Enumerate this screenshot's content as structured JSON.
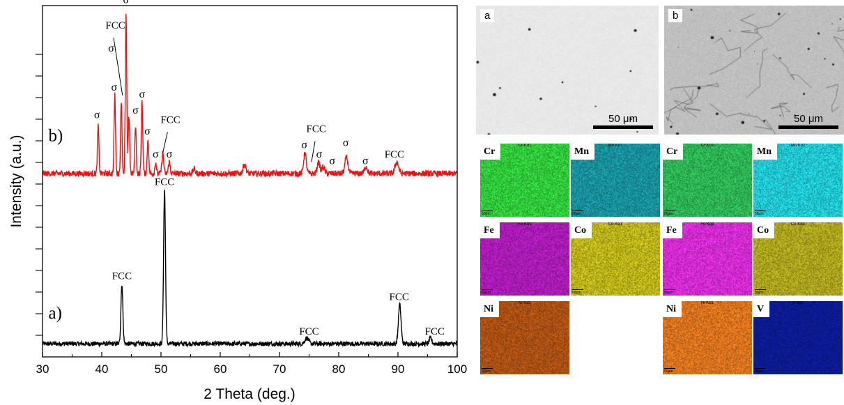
{
  "chart_data": {
    "type": "line",
    "title": "",
    "xlabel": "2 Theta (deg.)",
    "ylabel": "Intensity (a.u.)",
    "xlim": [
      30,
      100
    ],
    "xticks": [
      30,
      40,
      50,
      60,
      70,
      80,
      90,
      100
    ],
    "ylim": [
      0,
      100
    ],
    "legend": "none",
    "grid": false,
    "series": [
      {
        "label": "a)",
        "color": "#000000",
        "baseline": 3,
        "noise": 1.0,
        "peaks": [
          {
            "x": 43.4,
            "height": 26,
            "width": 0.16
          },
          {
            "x": 50.6,
            "height": 67,
            "width": 0.16
          },
          {
            "x": 74.6,
            "height": 2.5,
            "width": 0.3
          },
          {
            "x": 90.3,
            "height": 17,
            "width": 0.22
          },
          {
            "x": 95.5,
            "height": 2.5,
            "width": 0.2
          }
        ]
      },
      {
        "label": "b)",
        "color": "#ee1111",
        "baseline": 77,
        "noise": 1.3,
        "peaks": [
          {
            "x": 39.4,
            "height": 21,
            "width": 0.12
          },
          {
            "x": 42.2,
            "height": 34,
            "width": 0.12
          },
          {
            "x": 43.3,
            "height": 32,
            "width": 0.12
          },
          {
            "x": 44.1,
            "height": 69,
            "width": 0.12
          },
          {
            "x": 44.6,
            "height": 25,
            "width": 0.12
          },
          {
            "x": 45.7,
            "height": 21,
            "width": 0.12
          },
          {
            "x": 46.8,
            "height": 32,
            "width": 0.12
          },
          {
            "x": 47.8,
            "height": 15,
            "width": 0.12
          },
          {
            "x": 49.1,
            "height": 5,
            "width": 0.12
          },
          {
            "x": 50.3,
            "height": 9,
            "width": 0.15
          },
          {
            "x": 51.4,
            "height": 5,
            "width": 0.15
          },
          {
            "x": 55.6,
            "height": 2,
            "width": 0.2
          },
          {
            "x": 64.1,
            "height": 4,
            "width": 0.25
          },
          {
            "x": 74.3,
            "height": 9,
            "width": 0.22
          },
          {
            "x": 76.6,
            "height": 5,
            "width": 0.22
          },
          {
            "x": 77.4,
            "height": 3,
            "width": 0.22
          },
          {
            "x": 81.3,
            "height": 7,
            "width": 0.25
          },
          {
            "x": 84.6,
            "height": 3,
            "width": 0.25
          },
          {
            "x": 89.8,
            "height": 5,
            "width": 0.3
          }
        ]
      }
    ],
    "annotations": [
      {
        "text": "FCC",
        "x": 43.4,
        "y": 31,
        "kind": "peak"
      },
      {
        "text": "FCC",
        "x": 50.6,
        "y": 72,
        "kind": "peak"
      },
      {
        "text": "FCC",
        "x": 75.0,
        "y": 7,
        "kind": "peak"
      },
      {
        "text": "FCC",
        "x": 90.2,
        "y": 22,
        "kind": "peak"
      },
      {
        "text": "FCC",
        "x": 96.2,
        "y": 7,
        "kind": "peak"
      },
      {
        "text": "σ",
        "x": 39.2,
        "y": 101,
        "kind": "sigma"
      },
      {
        "text": "σ",
        "x": 42.1,
        "y": 113,
        "kind": "sigma"
      },
      {
        "text": "σ",
        "x": 44.1,
        "y": 151,
        "kind": "sigma"
      },
      {
        "text": "σ",
        "x": 45.7,
        "y": 103,
        "kind": "sigma"
      },
      {
        "text": "σ",
        "x": 46.8,
        "y": 110,
        "kind": "sigma"
      },
      {
        "text": "σ",
        "x": 47.7,
        "y": 94,
        "kind": "sigma"
      },
      {
        "text": "σ",
        "x": 49.1,
        "y": 84,
        "kind": "sigma"
      },
      {
        "text": "σ",
        "x": 51.4,
        "y": 84,
        "kind": "sigma"
      },
      {
        "text": "σ",
        "x": 74.2,
        "y": 88,
        "kind": "sigma"
      },
      {
        "text": "σ",
        "x": 76.7,
        "y": 84,
        "kind": "sigma"
      },
      {
        "text": "σ",
        "x": 78.9,
        "y": 81,
        "kind": "sigma"
      },
      {
        "text": "σ",
        "x": 81.2,
        "y": 89,
        "kind": "sigma"
      },
      {
        "text": "σ",
        "x": 84.5,
        "y": 81,
        "kind": "sigma"
      },
      {
        "text": "FCC",
        "x": 89.4,
        "y": 84,
        "kind": "plain"
      },
      {
        "text": "FCC",
        "x": 42.3,
        "y": 140,
        "kind": "leader",
        "tx": 43.5,
        "ty": 111,
        "lx": 42.0,
        "ly": 136
      },
      {
        "text": "σ",
        "x": 41.6,
        "y": 130,
        "kind": "plainsigma"
      },
      {
        "text": "FCC",
        "x": 51.6,
        "y": 99,
        "kind": "leader",
        "tx": 50.3,
        "ty": 86,
        "lx": 51.1,
        "ly": 95
      },
      {
        "text": "FCC",
        "x": 76.2,
        "y": 95,
        "kind": "leader",
        "tx": 75.4,
        "ty": 82,
        "lx": 76.0,
        "ly": 91
      }
    ],
    "pattern_labels": [
      {
        "text": "a)",
        "x": 31.0,
        "y": 14
      },
      {
        "text": "b)",
        "x": 31.0,
        "y": 91
      }
    ]
  },
  "sem": {
    "panels": [
      {
        "tag": "a",
        "scale": "50 μm",
        "tone": "#e8e8e8"
      },
      {
        "tag": "b",
        "scale": "50 μm",
        "tone": "#bfbfbf"
      }
    ],
    "maps": [
      {
        "element": "Cr",
        "line": "Cr Kα1",
        "scale": "50μm",
        "color": "#2fc83a"
      },
      {
        "element": "Mn",
        "line": "Mn Kα1",
        "scale": "50μm",
        "color": "#178f9a"
      },
      {
        "element": "Cr",
        "line": "Cr Kα1",
        "scale": "50μm",
        "color": "#2cb253"
      },
      {
        "element": "Mn",
        "line": "Mn Kα1",
        "scale": "50μm",
        "color": "#20c5d0"
      },
      {
        "element": "Fe",
        "line": "Fe Kα1",
        "scale": "50μm",
        "color": "#a81ab3"
      },
      {
        "element": "Co",
        "line": "Co Kα1",
        "scale": "50μm",
        "color": "#b9b119"
      },
      {
        "element": "Fe",
        "line": "Fe Kα1",
        "scale": "50μm",
        "color": "#d12ad0"
      },
      {
        "element": "Co",
        "line": "Co Kα1",
        "scale": "50μm",
        "color": "#a9a21c"
      },
      {
        "element": "Ni",
        "line": "Ni Kα1",
        "scale": "50μm",
        "color": "#a94f13"
      },
      null,
      {
        "element": "Ni",
        "line": "Ni Kα1",
        "scale": "50μm",
        "color": "#d9711d"
      },
      {
        "element": "V",
        "line": "V Kα1",
        "scale": "50μm",
        "color": "#0c1a8f"
      }
    ]
  }
}
